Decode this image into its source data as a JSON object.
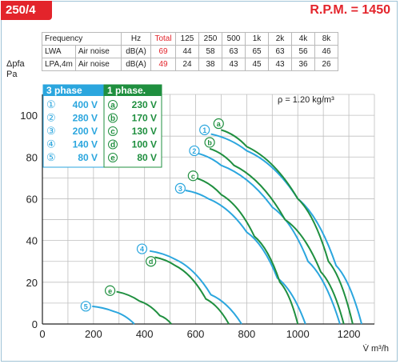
{
  "header": {
    "model": "250/4",
    "rpm": "R.P.M. = 1450"
  },
  "noise_table": {
    "headers": [
      "Frequency",
      "",
      "Hz",
      "Total",
      "125",
      "250",
      "500",
      "1k",
      "2k",
      "4k",
      "8k"
    ],
    "rows": [
      {
        "symbol": "LWA",
        "name": "Air noise",
        "unit": "dB(A)",
        "values": [
          "69",
          "44",
          "58",
          "63",
          "65",
          "63",
          "56",
          "46"
        ]
      },
      {
        "symbol": "LPA,4m",
        "name": "Air noise",
        "unit": "dB(A)",
        "values": [
          "49",
          "24",
          "38",
          "43",
          "45",
          "43",
          "36",
          "26"
        ]
      }
    ]
  },
  "axes": {
    "ylabel_main": "Δpfa",
    "ylabel_sub": "fa",
    "yunit": "Pa",
    "xlabel": "V̇ m³/h",
    "density": "ρ = 1.20 kg/m³"
  },
  "legend": {
    "three_phase": {
      "title": "3 phase",
      "items": [
        {
          "mark": "①",
          "label": "400 V"
        },
        {
          "mark": "②",
          "label": "280 V"
        },
        {
          "mark": "③",
          "label": "200 V"
        },
        {
          "mark": "④",
          "label": "140 V"
        },
        {
          "mark": "⑤",
          "label": "80 V"
        }
      ]
    },
    "one_phase": {
      "title": "1 phase.",
      "items": [
        {
          "mark": "a",
          "label": "230 V"
        },
        {
          "mark": "b",
          "label": "170 V"
        },
        {
          "mark": "c",
          "label": "130 V"
        },
        {
          "mark": "d",
          "label": "100 V"
        },
        {
          "mark": "e",
          "label": "80 V"
        }
      ]
    }
  },
  "colors": {
    "three_phase": "#2ba6de",
    "one_phase": "#1f8f3f",
    "accent": "#e3242b",
    "grid": "#bfbfbf"
  },
  "chart_data": {
    "type": "line",
    "xlim": [
      0,
      1300
    ],
    "ylim": [
      0,
      110
    ],
    "xticks": [
      0,
      200,
      400,
      600,
      800,
      1000,
      1200
    ],
    "yticks": [
      0,
      20,
      40,
      60,
      80,
      100
    ],
    "grid": true,
    "series": [
      {
        "name": "1",
        "group": "three_phase",
        "x": [
          660,
          800,
          1000,
          1150,
          1250
        ],
        "y": [
          91,
          83,
          60,
          28,
          0
        ]
      },
      {
        "name": "2",
        "group": "three_phase",
        "x": [
          600,
          700,
          900,
          1040,
          1165
        ],
        "y": [
          82,
          76,
          56,
          30,
          0
        ]
      },
      {
        "name": "3",
        "group": "three_phase",
        "x": [
          560,
          650,
          800,
          920,
          1030
        ],
        "y": [
          64,
          60,
          44,
          22,
          0
        ]
      },
      {
        "name": "4",
        "group": "three_phase",
        "x": [
          420,
          520,
          660,
          780
        ],
        "y": [
          35,
          31,
          14,
          0
        ]
      },
      {
        "name": "5",
        "group": "three_phase",
        "x": [
          195,
          280,
          360
        ],
        "y": [
          8.5,
          6,
          0
        ]
      },
      {
        "name": "a",
        "group": "one_phase",
        "x": [
          700,
          800,
          1000,
          1120,
          1215
        ],
        "y": [
          93,
          85,
          60,
          30,
          0
        ]
      },
      {
        "name": "b",
        "group": "one_phase",
        "x": [
          655,
          750,
          950,
          1090,
          1180
        ],
        "y": [
          84,
          76,
          50,
          25,
          0
        ]
      },
      {
        "name": "c",
        "group": "one_phase",
        "x": [
          600,
          700,
          830,
          930,
          1000
        ],
        "y": [
          70,
          62,
          42,
          20,
          0
        ]
      },
      {
        "name": "d",
        "group": "one_phase",
        "x": [
          440,
          520,
          640,
          730
        ],
        "y": [
          32,
          28,
          12,
          0
        ]
      },
      {
        "name": "e",
        "group": "one_phase",
        "x": [
          290,
          380,
          460,
          505
        ],
        "y": [
          15.5,
          11,
          4,
          0
        ]
      }
    ],
    "markers": [
      {
        "label": "①",
        "group": "three_phase",
        "x": 635,
        "y": 93
      },
      {
        "label": "②",
        "group": "three_phase",
        "x": 595,
        "y": 83
      },
      {
        "label": "③",
        "group": "three_phase",
        "x": 540,
        "y": 65
      },
      {
        "label": "④",
        "group": "three_phase",
        "x": 390,
        "y": 36
      },
      {
        "label": "⑤",
        "group": "three_phase",
        "x": 170,
        "y": 8.5
      },
      {
        "label": "a",
        "group": "one_phase",
        "x": 690,
        "y": 96
      },
      {
        "label": "b",
        "group": "one_phase",
        "x": 655,
        "y": 87
      },
      {
        "label": "c",
        "group": "one_phase",
        "x": 590,
        "y": 71
      },
      {
        "label": "d",
        "group": "one_phase",
        "x": 425,
        "y": 30
      },
      {
        "label": "e",
        "group": "one_phase",
        "x": 265,
        "y": 16
      }
    ]
  }
}
